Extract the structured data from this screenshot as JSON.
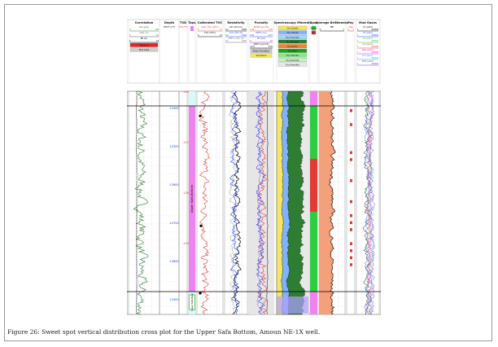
{
  "figure": {
    "caption": "Figure 26: Sweet spot vertical distribution cross plot for the Upper Safa Bottom, Amoun NE-1X well."
  },
  "chart_data": {
    "type": "well-log-composite",
    "tracks": [
      {
        "id": "correlation",
        "title": "Correlation",
        "curves": [
          {
            "name": "GR (gapi)",
            "min": "0",
            "max": "150",
            "color": "#2e7d32"
          },
          {
            "name": "CALI (in)",
            "min": "6",
            "max": "16",
            "color": "#555555"
          },
          {
            "name": "BS (in)",
            "min": "6",
            "max": "16",
            "color": "#000000"
          }
        ],
        "legend_fills": [
          {
            "name": "Washout",
            "color": "#ee2222"
          },
          {
            "name": "Mud Cake",
            "color": "#cccccc"
          }
        ]
      },
      {
        "id": "depth",
        "title": "Depth",
        "sub": "DEPTH (FT)",
        "ticks": [
          "12400",
          "12500",
          "12600",
          "12700",
          "12800",
          "12900"
        ]
      },
      {
        "id": "tvd",
        "title": "TVD",
        "sub": "TVD (FT)",
        "ticks": [
          "-11600",
          "-11700",
          "-11800",
          "-11900"
        ]
      },
      {
        "id": "tops",
        "title": "Tops",
        "zones": [
          {
            "label": "Upper Safa Bottom",
            "color": "#ee82ee"
          },
          {
            "label": "Upper Safa Base",
            "color": "#ee82ee"
          }
        ]
      },
      {
        "id": "toc",
        "title": "Calibrated TOC",
        "curves": [
          {
            "name": "Avtd_TOC (wt%)",
            "min": "0",
            "max": "12",
            "color": "#e53935"
          },
          {
            "name": "TOC (wt%)",
            "min": "0",
            "max": "12",
            "color": "#000000"
          }
        ]
      },
      {
        "id": "resistivity",
        "title": "Resistivity",
        "curves": [
          {
            "name": "ILD (ohm.m)",
            "min": "0.2",
            "max": "2000",
            "color": "#000000"
          },
          {
            "name": "LLS (ohm.m)",
            "min": "0.2",
            "max": "2000",
            "color": "#1e40ff"
          },
          {
            "name": "MSFL (ohm.m)",
            "min": "0.2",
            "max": "2000",
            "color": "#777777"
          }
        ]
      },
      {
        "id": "porosity",
        "title": "Porosity",
        "curves": [
          {
            "name": "RHOB (g/cm3)",
            "min": "1.95",
            "max": "2.95",
            "color": "#e53935"
          },
          {
            "name": "NPHI (v/v)",
            "min": "0.45",
            "max": "-0.15",
            "color": "#1e40ff"
          },
          {
            "name": "PE (b/e)",
            "min": "0",
            "max": "10",
            "color": "#7b2fbf"
          },
          {
            "name": "DRHO (g/cm3)",
            "min": "-0.75",
            "max": "0.25",
            "color": "#000000"
          }
        ],
        "legend_fills": [
          {
            "name": "Shaly Formation",
            "color": "#c8c8c8"
          },
          {
            "name": "Sandstone",
            "color": "#f5e663"
          }
        ]
      },
      {
        "id": "mineralogy",
        "title": "Spectroscopy Minerals",
        "legend_fills": [
          {
            "name": "Dry Quartz",
            "color": "#f5e663"
          },
          {
            "name": "Dry Calcite",
            "color": "#7fb2ff"
          },
          {
            "name": "Dry Dolomite",
            "color": "#9fd9ff"
          },
          {
            "name": "Dry Kerogen",
            "color": "#2e7d32"
          },
          {
            "name": "Dry Pyrite",
            "color": "#ff7f27"
          },
          {
            "name": "Dry Illite",
            "color": "#11a911"
          },
          {
            "name": "Dry Chlorite",
            "color": "#8fe08f"
          },
          {
            "name": "Dry Kaolinite",
            "color": "#c6f0c6"
          },
          {
            "name": "Dry Hematite",
            "color": "#e8e8e8"
          }
        ]
      },
      {
        "id": "sweetspot",
        "title": "Spot",
        "legend_fills": [
          {
            "name": "Sweet",
            "color": "#2ecc40"
          },
          {
            "name": "Non",
            "color": "#e53935"
          }
        ]
      },
      {
        "id": "brittleness",
        "title": "Average Brittleness",
        "curves": [
          {
            "name": "BRI",
            "min": "0",
            "max": "1",
            "color": "#000000"
          }
        ]
      },
      {
        "id": "pay",
        "title": "Pay",
        "curves": [
          {
            "name": "Flag",
            "min": "0",
            "max": "1",
            "color": "#e53935"
          }
        ]
      },
      {
        "id": "mudgases",
        "title": "Mud Gases",
        "curves": [
          {
            "name": "C1 (ppm)",
            "min": "1",
            "max": "100000",
            "color": "#000000"
          },
          {
            "name": "C2 (ppm)",
            "min": "1",
            "max": "100000",
            "color": "#1e40ff"
          },
          {
            "name": "C3 (ppm)",
            "min": "1",
            "max": "100000",
            "color": "#2ecc40"
          },
          {
            "name": "IC4 (ppm)",
            "min": "1",
            "max": "100000",
            "color": "#e53935"
          },
          {
            "name": "NC4 (ppm)",
            "min": "1",
            "max": "100000",
            "color": "#ff00ff"
          },
          {
            "name": "IC5 (ppm)",
            "min": "1",
            "max": "100000",
            "color": "#00bcd4"
          },
          {
            "name": "NC5 (ppm)",
            "min": "1",
            "max": "100000",
            "color": "#7b2fbf"
          }
        ]
      }
    ],
    "colors": {
      "frame": "#9a9a9a",
      "tops_zone": "#ee82ee",
      "interval_line": "#000000",
      "depth_text": "#1e40ff",
      "tvd_text": "#e53935"
    }
  }
}
